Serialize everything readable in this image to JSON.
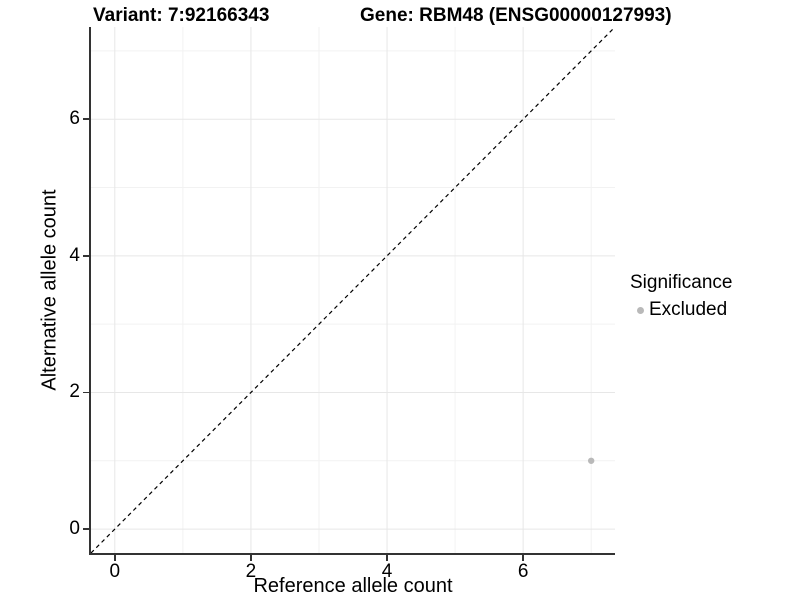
{
  "chart_data": {
    "type": "scatter",
    "title_left": "Variant: 7:92166343",
    "title_right": "Gene: RBM48 (ENSG00000127993)",
    "xlabel": "Reference allele count",
    "ylabel": "Alternative allele count",
    "xlim": [
      -0.35,
      7.35
    ],
    "ylim": [
      -0.35,
      7.35
    ],
    "x_ticks": [
      0,
      2,
      4,
      6
    ],
    "y_ticks": [
      0,
      2,
      4,
      6
    ],
    "x_minor_gridlines": [
      1,
      3,
      5,
      7
    ],
    "y_minor_gridlines": [
      1,
      3,
      5,
      7
    ],
    "grid": true,
    "points": [
      {
        "x": 7,
        "y": 1,
        "series": "Excluded"
      }
    ],
    "reference_line": {
      "type": "identity",
      "x1": -0.35,
      "y1": -0.35,
      "x2": 7.35,
      "y2": 7.35,
      "style": "dashed",
      "color": "#000000"
    },
    "legend": {
      "title": "Significance",
      "position": "right",
      "entries": [
        {
          "label": "Excluded",
          "color": "#b9b9b9"
        }
      ]
    },
    "colors": {
      "point": "#b9b9b9",
      "grid_major": "#e7e7e7",
      "grid_minor": "#f2f2f2",
      "axis_line": "#333333",
      "text": "#000000",
      "background": "#ffffff"
    }
  }
}
